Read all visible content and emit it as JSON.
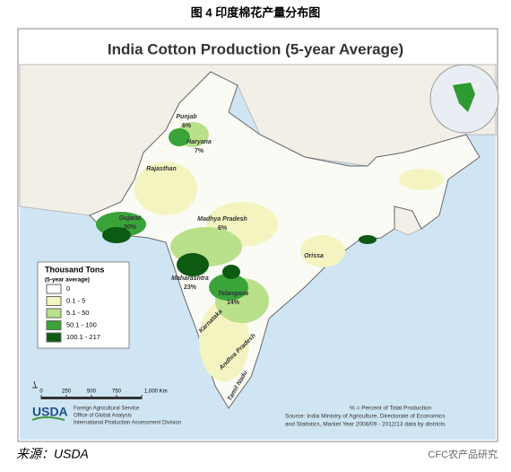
{
  "caption": "图 4  印度棉花产量分布图",
  "map": {
    "title": "India Cotton Production (5-year Average)",
    "regions": [
      {
        "name": "Punjab",
        "share": "6%"
      },
      {
        "name": "Haryana",
        "share": "7%"
      },
      {
        "name": "Rajasthan"
      },
      {
        "name": "Gujarat",
        "share": "30%"
      },
      {
        "name": "Madhya Pradesh",
        "share": "6%"
      },
      {
        "name": "Orissa"
      },
      {
        "name": "Maharashtra",
        "share": "23%"
      },
      {
        "name": "Telangana",
        "share": "14%"
      },
      {
        "name": "Karnataka"
      },
      {
        "name": "Andhra Pradesh"
      },
      {
        "name": "Tamil Nadu"
      }
    ],
    "legend": {
      "title": "Thousand Tons",
      "subtitle": "(5-year average)",
      "classes": [
        {
          "label": "0",
          "color": "#ffffff"
        },
        {
          "label": "0.1 - 5",
          "color": "#f3f4bf"
        },
        {
          "label": "5.1 - 50",
          "color": "#b9e08a"
        },
        {
          "label": "50.1 - 100",
          "color": "#3aa33a"
        },
        {
          "label": "100.1 - 217",
          "color": "#0d5a12"
        }
      ]
    },
    "scale": [
      "0",
      "250",
      "500",
      "750",
      "1,000 Km"
    ],
    "agency": {
      "logo": "USDA",
      "lines": [
        "Foreign Agricultural Service",
        "Office of Global Analysis",
        "International Production Assessment Division"
      ]
    },
    "notes": [
      "% = Percent of Total Production",
      "Source: India Ministry of Agriculture, Directorate of Economics",
      "and Statistics, Market Year 2008/09 - 2012/13 data by districts"
    ]
  },
  "source": "来源：USDA",
  "watermark": "CFC农产品研究"
}
